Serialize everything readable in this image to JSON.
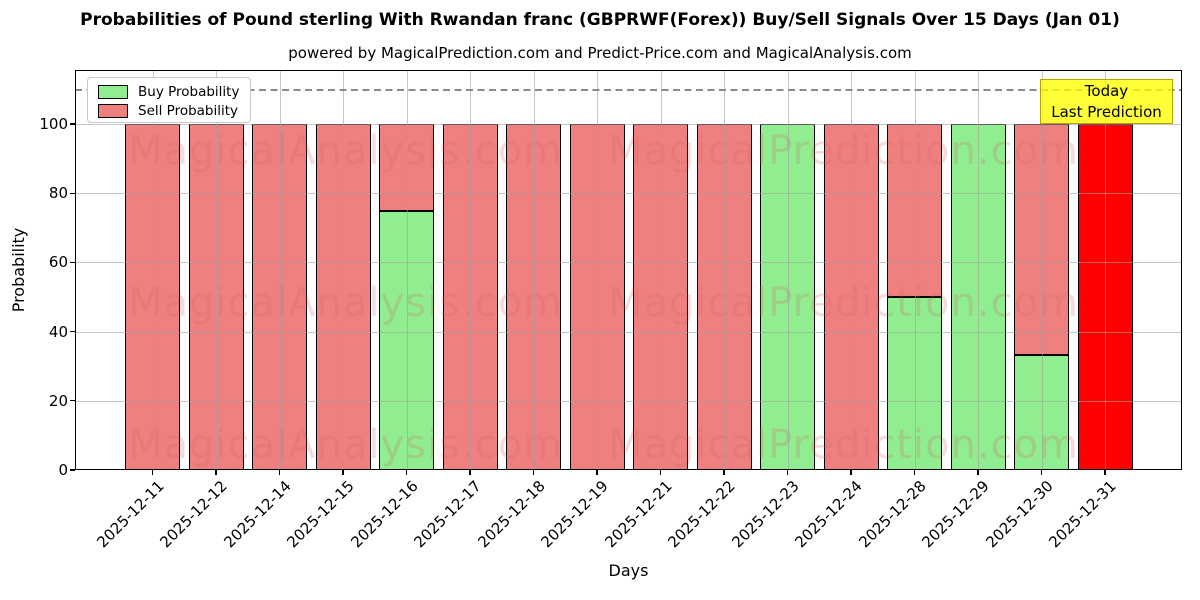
{
  "figure": {
    "title": "Probabilities of Pound sterling With Rwandan franc (GBPRWF(Forex)) Buy/Sell Signals Over 15 Days (Jan 01)",
    "subtitle": "powered by MagicalPrediction.com and Predict-Price.com and MagicalAnalysis.com",
    "xlabel": "Days",
    "ylabel": "Probability"
  },
  "legend": {
    "items": [
      {
        "label": "Buy Probability",
        "color": "#90ee90"
      },
      {
        "label": "Sell Probability",
        "color": "#f08080"
      }
    ]
  },
  "annotation": {
    "line1": "Today",
    "line2": "Last Prediction",
    "bg_color": "#ffff00",
    "border_color": "#b8a000"
  },
  "watermarks": {
    "left": "MagicalAnalysis.com",
    "right": "MagicalPrediction.com"
  },
  "chart_data": {
    "type": "bar",
    "stacked": true,
    "title": "Probabilities of Pound sterling With Rwandan franc (GBPRWF(Forex)) Buy/Sell Signals Over 15 Days (Jan 01)",
    "subtitle": "powered by MagicalPrediction.com and Predict-Price.com and MagicalAnalysis.com",
    "xlabel": "Days",
    "ylabel": "Probability",
    "ylim": [
      0,
      116
    ],
    "yticks": [
      0,
      20,
      40,
      60,
      80,
      100
    ],
    "dashed_line_y": 110,
    "grid": true,
    "legend_position": "upper left",
    "categories": [
      "2025-12-11",
      "2025-12-12",
      "2025-12-14",
      "2025-12-15",
      "2025-12-16",
      "2025-12-17",
      "2025-12-18",
      "2025-12-19",
      "2025-12-21",
      "2025-12-22",
      "2025-12-23",
      "2025-12-24",
      "2025-12-28",
      "2025-12-29",
      "2025-12-30",
      "2025-12-31"
    ],
    "series": [
      {
        "name": "Buy Probability",
        "color": "#90ee90",
        "values": [
          0,
          0,
          0,
          0,
          75,
          0,
          0,
          0,
          0,
          0,
          100,
          0,
          50,
          100,
          33.33,
          0
        ]
      },
      {
        "name": "Sell Probability",
        "color": "#f08080",
        "values": [
          100,
          100,
          100,
          100,
          25,
          100,
          100,
          100,
          100,
          100,
          0,
          100,
          50,
          0,
          66.67,
          100
        ]
      }
    ],
    "highlight_bar": {
      "index": 15,
      "category": "2025-12-31",
      "color": "#ff0000",
      "note": "Today / Last Prediction"
    }
  }
}
